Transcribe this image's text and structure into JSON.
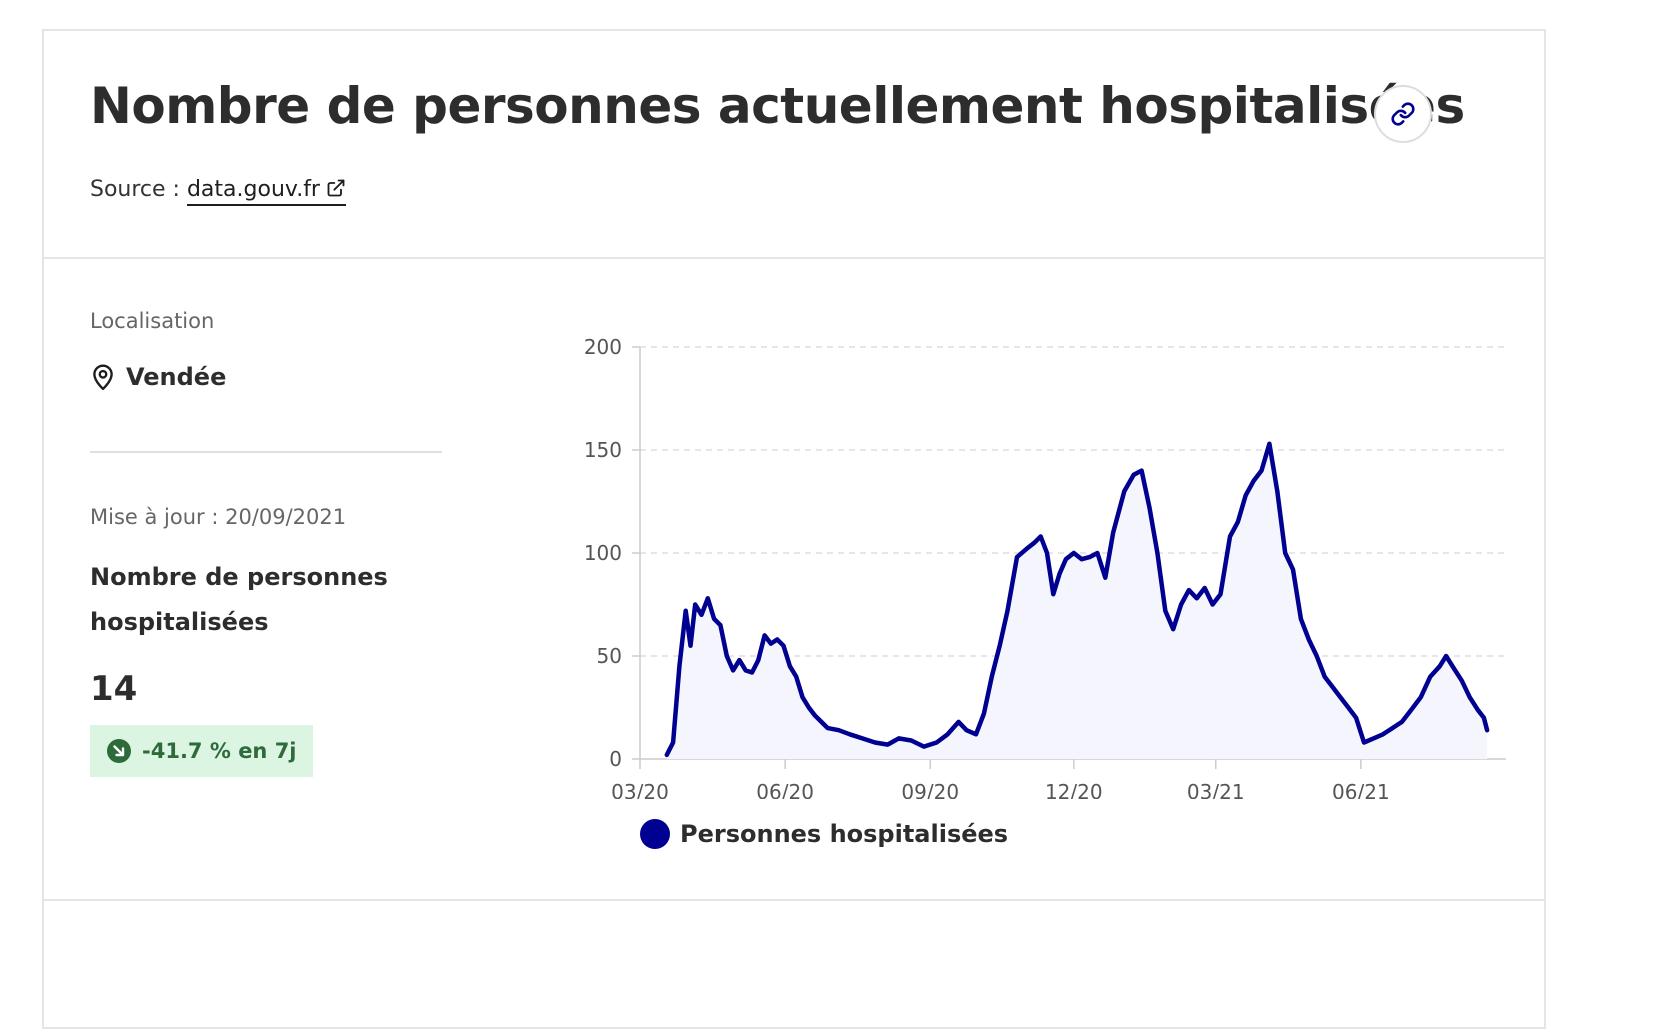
{
  "header": {
    "title": "Nombre de personnes actuellement hospitalisées",
    "source_prefix": "Source : ",
    "source_link": "data.gouv.fr",
    "link_icon": "link-icon",
    "external_icon": "external-link-icon"
  },
  "location": {
    "label": "Localisation",
    "value": "Vendée",
    "icon": "map-pin-icon"
  },
  "indicator": {
    "update_text": "Mise à jour : 20/09/2021",
    "name": "Nombre de personnes hospitalisées",
    "value": "14",
    "trend_text": "-41.7 % en 7j",
    "trend_icon": "arrow-down-right-icon",
    "trend_color": "#dcf5e3"
  },
  "colors": {
    "series": "#000091",
    "fill": "#f5f5fe",
    "grid": "#dddddd",
    "axis_text": "#555555"
  },
  "chart_data": {
    "type": "area",
    "x_ticks": [
      "03/20",
      "06/20",
      "09/20",
      "12/20",
      "03/21",
      "06/21"
    ],
    "x_start_month": "2020-03",
    "x_end_month": "2021-09",
    "ylim": [
      0,
      200
    ],
    "y_ticks": [
      0,
      50,
      100,
      150,
      200
    ],
    "grid": true,
    "legend_position": "bottom",
    "series": [
      {
        "name": "Personnes hospitalisées",
        "points": [
          [
            "2020-03-18",
            2
          ],
          [
            "2020-03-22",
            8
          ],
          [
            "2020-03-26",
            45
          ],
          [
            "2020-03-30",
            72
          ],
          [
            "2020-04-02",
            55
          ],
          [
            "2020-04-05",
            75
          ],
          [
            "2020-04-09",
            70
          ],
          [
            "2020-04-13",
            78
          ],
          [
            "2020-04-17",
            68
          ],
          [
            "2020-04-21",
            65
          ],
          [
            "2020-04-25",
            50
          ],
          [
            "2020-04-29",
            43
          ],
          [
            "2020-05-03",
            48
          ],
          [
            "2020-05-07",
            43
          ],
          [
            "2020-05-11",
            42
          ],
          [
            "2020-05-15",
            48
          ],
          [
            "2020-05-19",
            60
          ],
          [
            "2020-05-23",
            56
          ],
          [
            "2020-05-27",
            58
          ],
          [
            "2020-05-31",
            55
          ],
          [
            "2020-06-04",
            45
          ],
          [
            "2020-06-08",
            40
          ],
          [
            "2020-06-12",
            30
          ],
          [
            "2020-06-16",
            25
          ],
          [
            "2020-06-20",
            21
          ],
          [
            "2020-06-24",
            18
          ],
          [
            "2020-06-28",
            15
          ],
          [
            "2020-07-05",
            14
          ],
          [
            "2020-07-12",
            12
          ],
          [
            "2020-07-20",
            10
          ],
          [
            "2020-07-28",
            8
          ],
          [
            "2020-08-05",
            7
          ],
          [
            "2020-08-12",
            10
          ],
          [
            "2020-08-20",
            9
          ],
          [
            "2020-08-28",
            6
          ],
          [
            "2020-09-05",
            8
          ],
          [
            "2020-09-12",
            12
          ],
          [
            "2020-09-19",
            18
          ],
          [
            "2020-09-24",
            14
          ],
          [
            "2020-09-30",
            12
          ],
          [
            "2020-10-05",
            22
          ],
          [
            "2020-10-10",
            40
          ],
          [
            "2020-10-15",
            55
          ],
          [
            "2020-10-20",
            72
          ],
          [
            "2020-10-26",
            98
          ],
          [
            "2020-11-01",
            102
          ],
          [
            "2020-11-06",
            105
          ],
          [
            "2020-11-10",
            108
          ],
          [
            "2020-11-14",
            100
          ],
          [
            "2020-11-18",
            80
          ],
          [
            "2020-11-22",
            90
          ],
          [
            "2020-11-26",
            97
          ],
          [
            "2020-12-01",
            100
          ],
          [
            "2020-12-06",
            97
          ],
          [
            "2020-12-11",
            98
          ],
          [
            "2020-12-16",
            100
          ],
          [
            "2020-12-21",
            88
          ],
          [
            "2020-12-26",
            110
          ],
          [
            "2021-01-02",
            130
          ],
          [
            "2021-01-08",
            138
          ],
          [
            "2021-01-13",
            140
          ],
          [
            "2021-01-18",
            122
          ],
          [
            "2021-01-23",
            100
          ],
          [
            "2021-01-28",
            72
          ],
          [
            "2021-02-02",
            63
          ],
          [
            "2021-02-07",
            75
          ],
          [
            "2021-02-12",
            82
          ],
          [
            "2021-02-17",
            78
          ],
          [
            "2021-02-22",
            83
          ],
          [
            "2021-02-27",
            75
          ],
          [
            "2021-03-04",
            80
          ],
          [
            "2021-03-10",
            108
          ],
          [
            "2021-03-15",
            115
          ],
          [
            "2021-03-20",
            128
          ],
          [
            "2021-03-25",
            135
          ],
          [
            "2021-03-30",
            140
          ],
          [
            "2021-04-04",
            153
          ],
          [
            "2021-04-09",
            130
          ],
          [
            "2021-04-14",
            100
          ],
          [
            "2021-04-19",
            92
          ],
          [
            "2021-04-24",
            68
          ],
          [
            "2021-04-29",
            58
          ],
          [
            "2021-05-04",
            50
          ],
          [
            "2021-05-09",
            40
          ],
          [
            "2021-05-14",
            35
          ],
          [
            "2021-05-19",
            30
          ],
          [
            "2021-05-24",
            25
          ],
          [
            "2021-05-29",
            20
          ],
          [
            "2021-06-03",
            8
          ],
          [
            "2021-06-09",
            10
          ],
          [
            "2021-06-15",
            12
          ],
          [
            "2021-06-21",
            15
          ],
          [
            "2021-06-27",
            18
          ],
          [
            "2021-07-03",
            24
          ],
          [
            "2021-07-09",
            30
          ],
          [
            "2021-07-15",
            40
          ],
          [
            "2021-07-21",
            45
          ],
          [
            "2021-07-25",
            50
          ],
          [
            "2021-07-30",
            44
          ],
          [
            "2021-08-04",
            38
          ],
          [
            "2021-08-09",
            30
          ],
          [
            "2021-08-14",
            24
          ],
          [
            "2021-08-18",
            20
          ],
          [
            "2021-08-20",
            14
          ]
        ]
      }
    ]
  }
}
